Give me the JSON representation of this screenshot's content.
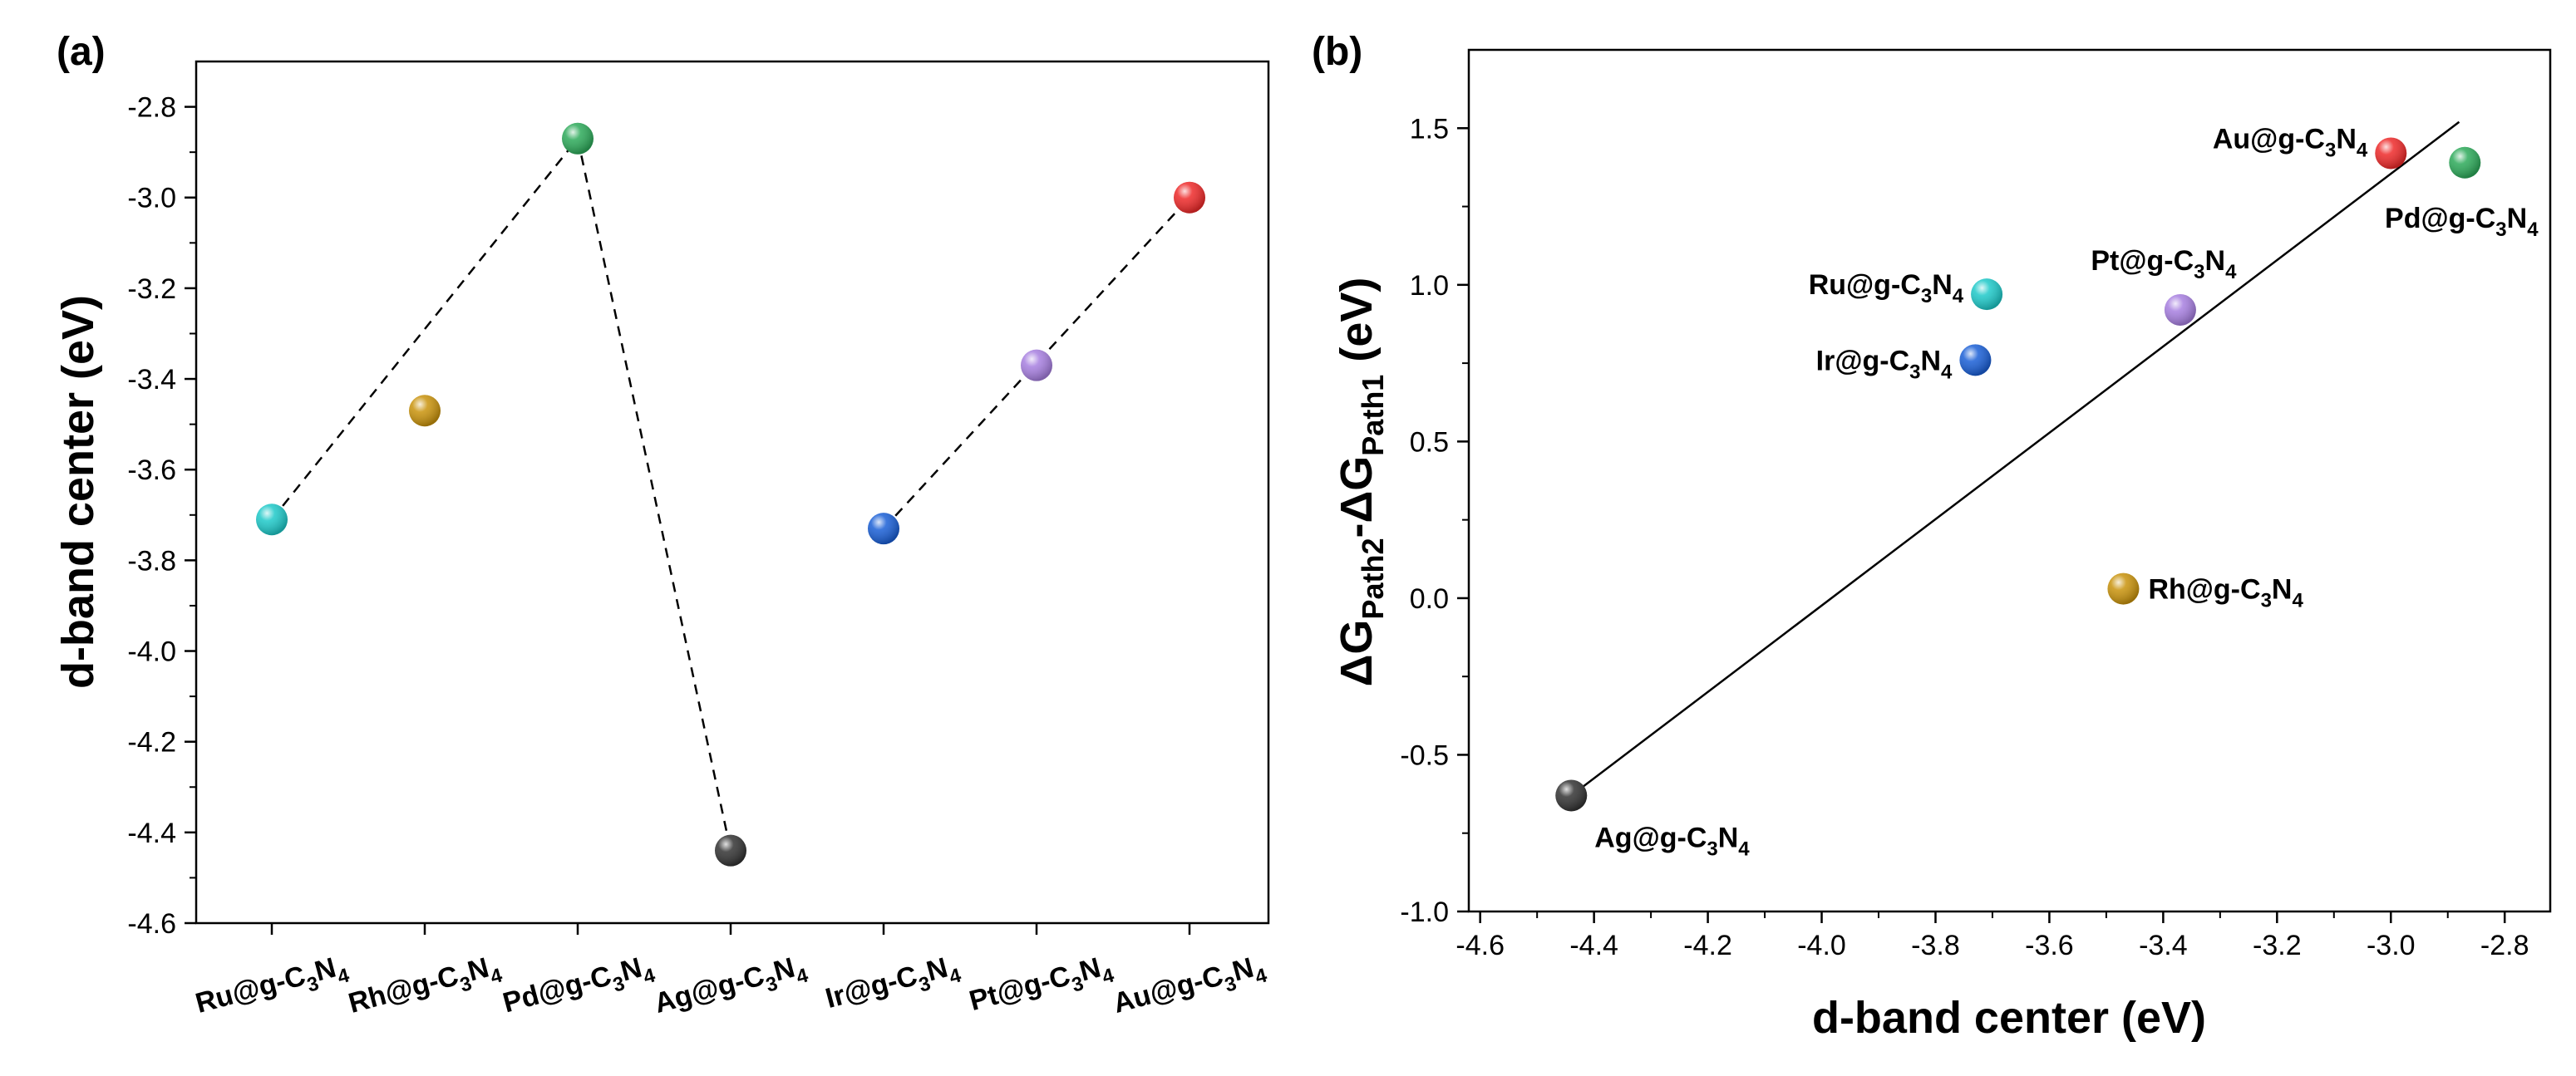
{
  "chart_data": [
    {
      "panel": "(a)",
      "type": "scatter",
      "ylabel": "d-band center (eV)",
      "ylim": [
        -4.6,
        -2.7
      ],
      "yticks": [
        -4.6,
        -4.4,
        -4.2,
        -4.0,
        -3.8,
        -3.6,
        -3.4,
        -3.2,
        -3.0,
        -2.8
      ],
      "ytick_labels": [
        "-4.6",
        "-4.4",
        "-4.2",
        "-4.0",
        "-3.8",
        "-3.6",
        "-3.4",
        "-3.2",
        "-3.0",
        "-2.8"
      ],
      "categories": [
        {
          "base": "Ru@g-C",
          "n": "N"
        },
        {
          "base": "Rh@g-C",
          "n": "N"
        },
        {
          "base": "Pd@g-C",
          "n": "N"
        },
        {
          "base": "Ag@g-C",
          "n": "N"
        },
        {
          "base": "Ir@g-C",
          "n": "N"
        },
        {
          "base": "Pt@g-C",
          "n": "N"
        },
        {
          "base": "Au@g-C",
          "n": "N"
        }
      ],
      "subscript_3": "3",
      "subscript_4": "4",
      "values": [
        -3.71,
        -3.47,
        -2.87,
        -4.44,
        -3.73,
        -3.37,
        -3.0
      ],
      "colors": [
        "#1ec9c9",
        "#c9930c",
        "#2daa5a",
        "#333333",
        "#1a5fd6",
        "#a77fe0",
        "#ee2a2a"
      ],
      "dashed_connections": [
        [
          0,
          2
        ],
        [
          2,
          3
        ],
        [
          4,
          6
        ]
      ]
    },
    {
      "panel": "(b)",
      "type": "scatter",
      "xlabel": "d-band center (eV)",
      "ylabel": {
        "main": "ΔG",
        "sub1": "Path2",
        "mid": "-ΔG",
        "sub2": "Path1",
        "unit": " (eV)"
      },
      "xlim": [
        -4.62,
        -2.72
      ],
      "ylim": [
        -1.0,
        1.75
      ],
      "xticks": [
        -4.6,
        -4.4,
        -4.2,
        -4.0,
        -3.8,
        -3.6,
        -3.4,
        -3.2,
        -3.0,
        -2.8
      ],
      "xtick_labels": [
        "-4.6",
        "-4.4",
        "-4.2",
        "-4.0",
        "-3.8",
        "-3.6",
        "-3.4",
        "-3.2",
        "-3.0",
        "-2.8"
      ],
      "yticks": [
        -1.0,
        -0.5,
        0.0,
        0.5,
        1.0,
        1.5
      ],
      "ytick_labels": [
        "-1.0",
        "-0.5",
        "0.0",
        "0.5",
        "1.0",
        "1.5"
      ],
      "points": [
        {
          "base": "Au@g-C",
          "n": "N",
          "x": -3.0,
          "y": 1.42,
          "color": "#ee2a2a"
        },
        {
          "base": "Pd@g-C",
          "n": "N",
          "x": -2.87,
          "y": 1.39,
          "color": "#2daa5a"
        },
        {
          "base": "Ru@g-C",
          "n": "N",
          "x": -3.71,
          "y": 0.97,
          "color": "#1ec9c9"
        },
        {
          "base": "Pt@g-C",
          "n": "N",
          "x": -3.37,
          "y": 0.92,
          "color": "#a77fe0"
        },
        {
          "base": "Ir@g-C",
          "n": "N",
          "x": -3.73,
          "y": 0.76,
          "color": "#1a5fd6"
        },
        {
          "base": "Rh@g-C",
          "n": "N",
          "x": -3.47,
          "y": 0.03,
          "color": "#c9930c"
        },
        {
          "base": "Ag@g-C",
          "n": "N",
          "x": -4.44,
          "y": -0.63,
          "color": "#333333"
        }
      ],
      "subscript_3": "3",
      "subscript_4": "4",
      "fit_line": {
        "x": [
          -4.44,
          -2.88
        ],
        "y": [
          -0.63,
          1.52
        ]
      }
    }
  ]
}
